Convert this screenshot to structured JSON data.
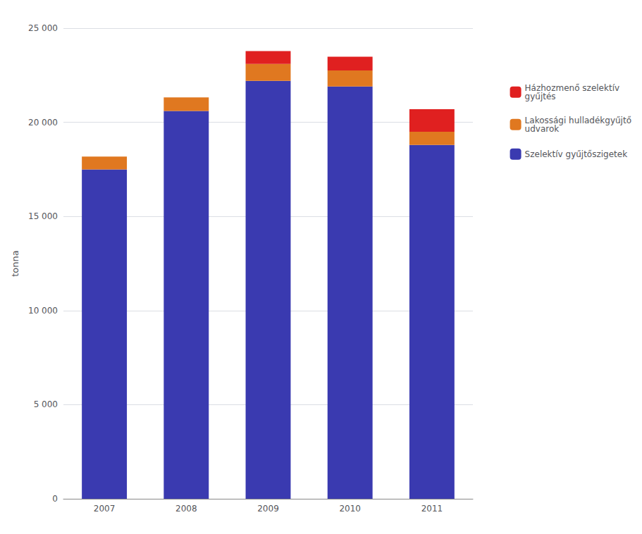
{
  "chart_data": {
    "type": "bar",
    "stacked": true,
    "categories": [
      "2007",
      "2008",
      "2009",
      "2010",
      "2011"
    ],
    "series": [
      {
        "name": "Szelektív gyűjtőszigetek",
        "color": "#3A3AB0",
        "values": [
          17500,
          20600,
          22200,
          21900,
          18800
        ]
      },
      {
        "name": "Lakossági hulladékgyűjtő\nudvarok",
        "color": "#E07820",
        "values": [
          680,
          720,
          900,
          850,
          700
        ]
      },
      {
        "name": "Házhozmenő szelektív\ngyűjtés",
        "color": "#E02020",
        "values": [
          0,
          0,
          680,
          730,
          1200
        ]
      }
    ],
    "ylabel": "tonna",
    "ylim": [
      0,
      25000
    ],
    "yticks": [
      0,
      {
        "value": 5000,
        "label": "5 000"
      },
      {
        "value": 10000,
        "label": "10 000"
      },
      {
        "value": 15000,
        "label": "15 000"
      },
      {
        "value": 20000,
        "label": "20 000"
      },
      {
        "value": 25000,
        "label": "25 000"
      }
    ],
    "grid": true,
    "legend": "right"
  }
}
